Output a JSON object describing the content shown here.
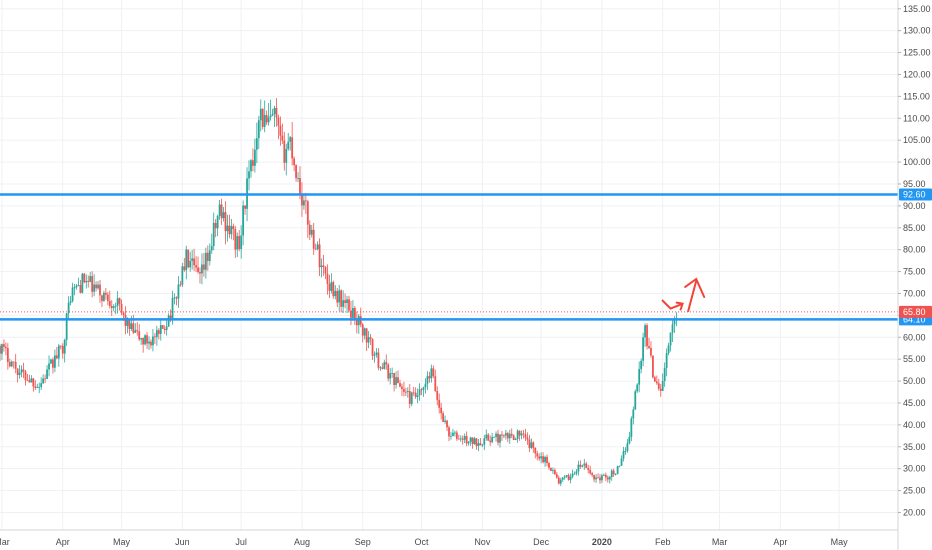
{
  "chart_data": {
    "type": "candlestick",
    "colors": {
      "up": "#26a69a",
      "down": "#ef5350",
      "line": "#2196f3",
      "marked_badge": "#ef5350",
      "arrow": "#f44336",
      "grid": "#eef1f4"
    },
    "y_axis": {
      "range": [
        16,
        137
      ],
      "tick_labels": [
        "20.00",
        "25.00",
        "30.00",
        "35.00",
        "40.00",
        "45.00",
        "50.00",
        "55.00",
        "60.00",
        "65.00",
        "70.00",
        "75.00",
        "80.00",
        "85.00",
        "90.00",
        "95.00",
        "100.00",
        "105.00",
        "110.00",
        "115.00",
        "120.00",
        "125.00",
        "130.00",
        "135.00"
      ]
    },
    "x_axis": {
      "labels": [
        "Mar",
        "Apr",
        "May",
        "Jun",
        "Jul",
        "Aug",
        "Sep",
        "Oct",
        "Nov",
        "Dec",
        "2020",
        "Feb",
        "Mar",
        "Apr",
        "May"
      ],
      "range": [
        "2019-02-28",
        "2020-05-31"
      ]
    },
    "horizontal_lines": [
      {
        "label": "92.60",
        "value": 92.6
      },
      {
        "label": "64.10",
        "value": 64.1
      }
    ],
    "current_price": {
      "label": "65.80",
      "value": 65.8
    },
    "path_points": [
      [
        "2019-02-28",
        58
      ],
      [
        "2019-03-10",
        52
      ],
      [
        "2019-03-20",
        49
      ],
      [
        "2019-04-01",
        58
      ],
      [
        "2019-04-05",
        70
      ],
      [
        "2019-04-12",
        73
      ],
      [
        "2019-04-20",
        70
      ],
      [
        "2019-04-28",
        68
      ],
      [
        "2019-05-05",
        62
      ],
      [
        "2019-05-12",
        59
      ],
      [
        "2019-05-20",
        60
      ],
      [
        "2019-05-27",
        67
      ],
      [
        "2019-06-03",
        78
      ],
      [
        "2019-06-10",
        73
      ],
      [
        "2019-06-15",
        80
      ],
      [
        "2019-06-20",
        89
      ],
      [
        "2019-06-26",
        84
      ],
      [
        "2019-06-30",
        80
      ],
      [
        "2019-07-03",
        92
      ],
      [
        "2019-07-07",
        100
      ],
      [
        "2019-07-10",
        112
      ],
      [
        "2019-07-14",
        108
      ],
      [
        "2019-07-18",
        110
      ],
      [
        "2019-07-22",
        102
      ],
      [
        "2019-07-26",
        105
      ],
      [
        "2019-07-29",
        98
      ],
      [
        "2019-08-01",
        92
      ],
      [
        "2019-08-05",
        85
      ],
      [
        "2019-08-10",
        78
      ],
      [
        "2019-08-14",
        73
      ],
      [
        "2019-08-20",
        69
      ],
      [
        "2019-08-28",
        65
      ],
      [
        "2019-09-03",
        60
      ],
      [
        "2019-09-08",
        55
      ],
      [
        "2019-09-14",
        52
      ],
      [
        "2019-09-20",
        49
      ],
      [
        "2019-09-25",
        46
      ],
      [
        "2019-10-01",
        47
      ],
      [
        "2019-10-06",
        52
      ],
      [
        "2019-10-10",
        44
      ],
      [
        "2019-10-15",
        38
      ],
      [
        "2019-10-20",
        37
      ],
      [
        "2019-10-28",
        36
      ],
      [
        "2019-11-05",
        37
      ],
      [
        "2019-11-12",
        37
      ],
      [
        "2019-11-20",
        38
      ],
      [
        "2019-11-28",
        34
      ],
      [
        "2019-12-05",
        31
      ],
      [
        "2019-12-10",
        27
      ],
      [
        "2019-12-15",
        28
      ],
      [
        "2019-12-22",
        31
      ],
      [
        "2019-12-28",
        28
      ],
      [
        "2020-01-03",
        28
      ],
      [
        "2020-01-10",
        30
      ],
      [
        "2020-01-15",
        38
      ],
      [
        "2020-01-19",
        50
      ],
      [
        "2020-01-23",
        62
      ],
      [
        "2020-01-27",
        52
      ],
      [
        "2020-01-31",
        48
      ],
      [
        "2020-02-04",
        58
      ],
      [
        "2020-02-08",
        66
      ]
    ]
  }
}
